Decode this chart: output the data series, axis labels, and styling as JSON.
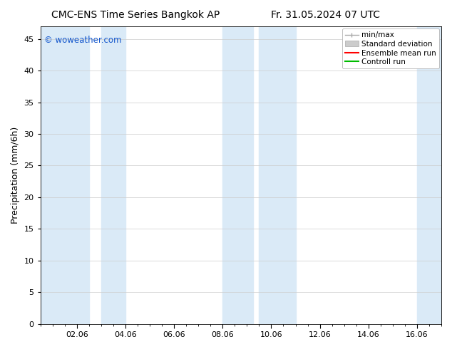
{
  "title_left": "CMC-ENS Time Series Bangkok AP",
  "title_right": "Fr. 31.05.2024 07 UTC",
  "ylabel": "Precipitation (mm/6h)",
  "watermark": "© woweather.com",
  "watermark_color": "#1155cc",
  "xlim_start": 0.0,
  "xlim_end": 16.5,
  "ylim": [
    0,
    47
  ],
  "yticks": [
    0,
    5,
    10,
    15,
    20,
    25,
    30,
    35,
    40,
    45
  ],
  "xtick_labels": [
    "02.06",
    "04.06",
    "06.06",
    "08.06",
    "10.06",
    "12.06",
    "14.06",
    "16.06"
  ],
  "xtick_positions": [
    1.5,
    3.5,
    5.5,
    7.5,
    9.5,
    11.5,
    13.5,
    15.5
  ],
  "shade_regions": [
    [
      0.0,
      2.0
    ],
    [
      2.5,
      3.5
    ],
    [
      7.5,
      8.75
    ],
    [
      9.0,
      10.5
    ],
    [
      15.5,
      16.5
    ]
  ],
  "shade_color": "#daeaf7",
  "bg_color": "#ffffff",
  "plot_bg_color": "#ffffff",
  "grid_color": "#cccccc",
  "legend_entries": [
    {
      "label": "min/max",
      "color": "#aaaaaa",
      "style": "minmax"
    },
    {
      "label": "Standard deviation",
      "color": "#cccccc",
      "style": "stddev"
    },
    {
      "label": "Ensemble mean run",
      "color": "#ff0000",
      "style": "line"
    },
    {
      "label": "Controll run",
      "color": "#00bb00",
      "style": "line"
    }
  ],
  "title_fontsize": 10,
  "tick_fontsize": 8,
  "legend_fontsize": 7.5,
  "ylabel_fontsize": 9
}
